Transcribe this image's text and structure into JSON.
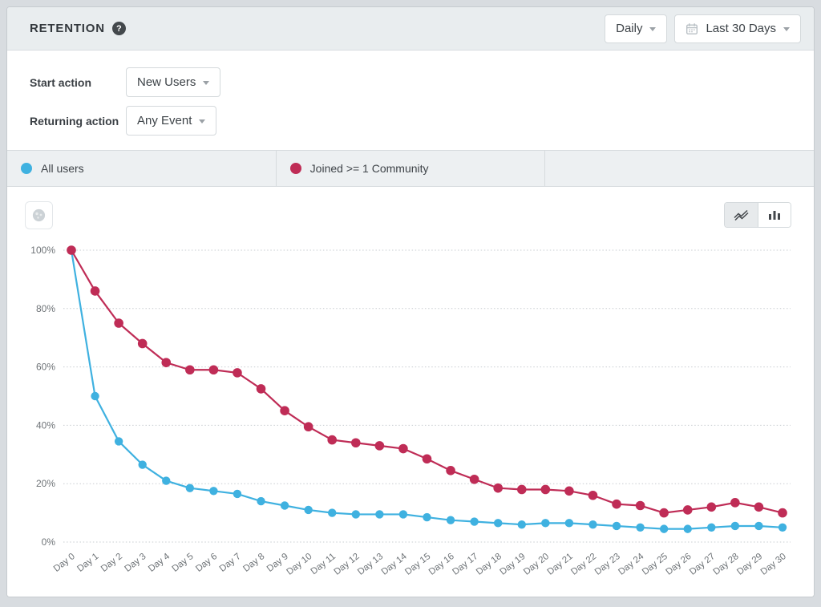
{
  "header": {
    "title": "RETENTION",
    "help_icon": "question-mark-icon",
    "interval_dropdown": {
      "value": "Daily"
    },
    "date_range_dropdown": {
      "value": "Last 30 Days",
      "icon": "calendar-icon"
    }
  },
  "filters": {
    "start_action": {
      "label": "Start action",
      "value": "New Users"
    },
    "returning_action": {
      "label": "Returning action",
      "value": "Any Event"
    }
  },
  "legend": {
    "items": [
      {
        "label": "All users",
        "color": "#3fb1e0"
      },
      {
        "label": "Joined >= 1 Community",
        "color": "#bf2c56"
      }
    ]
  },
  "toolbar": {
    "chart_type_options": [
      "line",
      "bar"
    ],
    "active_chart_type": "line",
    "icons": [
      "line-chart-icon",
      "bar-chart-icon",
      "globe-icon"
    ]
  },
  "chart_data": {
    "type": "line",
    "x": [
      "Day 0",
      "Day 1",
      "Day 2",
      "Day 3",
      "Day 4",
      "Day 5",
      "Day 6",
      "Day 7",
      "Day 8",
      "Day 9",
      "Day 10",
      "Day 11",
      "Day 12",
      "Day 13",
      "Day 14",
      "Day 15",
      "Day 16",
      "Day 17",
      "Day 18",
      "Day 19",
      "Day 20",
      "Day 21",
      "Day 22",
      "Day 23",
      "Day 24",
      "Day 25",
      "Day 26",
      "Day 27",
      "Day 28",
      "Day 29",
      "Day 30"
    ],
    "series": [
      {
        "name": "All users",
        "color": "#3fb1e0",
        "values": [
          100,
          50,
          34.5,
          26.5,
          21,
          18.5,
          17.5,
          16.5,
          14,
          12.5,
          11,
          10,
          9.5,
          9.5,
          9.5,
          8.5,
          7.5,
          7,
          6.5,
          6,
          6.5,
          6.5,
          6,
          5.5,
          5,
          4.5,
          4.5,
          5,
          5.5,
          5.5,
          5
        ]
      },
      {
        "name": "Joined >= 1 Community",
        "color": "#bf2c56",
        "values": [
          100,
          86,
          75,
          68,
          61.5,
          59,
          59,
          58,
          52.5,
          45,
          39.5,
          35,
          34,
          33,
          32,
          28.5,
          24.5,
          21.5,
          18.5,
          18,
          18,
          17.5,
          16,
          13,
          12.5,
          10,
          11,
          12,
          13.5,
          12,
          10
        ]
      }
    ],
    "yticks": [
      "0%",
      "20%",
      "40%",
      "60%",
      "80%",
      "100%"
    ],
    "ylim": [
      0,
      100
    ],
    "xlabel": "",
    "ylabel": "",
    "grid": "horizontal-dotted",
    "legend_position": "top"
  }
}
